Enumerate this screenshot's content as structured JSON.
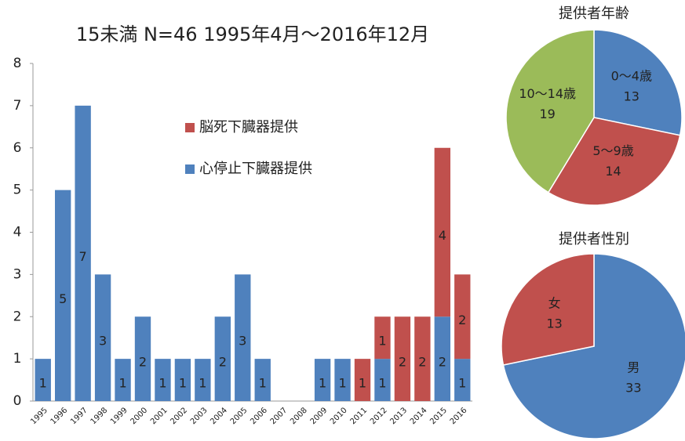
{
  "chart_data": [
    {
      "type": "bar",
      "stacked": true,
      "title": "15未満 N=46 1995年4月～2016年12月",
      "categories": [
        "1995",
        "1996",
        "1997",
        "1998",
        "1999",
        "2000",
        "2001",
        "2002",
        "2003",
        "2004",
        "2005",
        "2006",
        "2007",
        "2008",
        "2009",
        "2010",
        "2011",
        "2012",
        "2013",
        "2014",
        "2015",
        "2016"
      ],
      "series": [
        {
          "name": "心停止下臓器提供",
          "color": "#4f81bd",
          "values": [
            1,
            5,
            7,
            3,
            1,
            2,
            1,
            1,
            1,
            2,
            3,
            1,
            0,
            0,
            1,
            1,
            0,
            1,
            0,
            0,
            2,
            1
          ]
        },
        {
          "name": "脳死下臓器提供",
          "color": "#c0504d",
          "values": [
            0,
            0,
            0,
            0,
            0,
            0,
            0,
            0,
            0,
            0,
            0,
            0,
            0,
            0,
            0,
            0,
            1,
            1,
            2,
            2,
            4,
            2
          ]
        }
      ],
      "ylim": [
        0,
        8
      ],
      "yticks": [
        0,
        1,
        2,
        3,
        4,
        5,
        6,
        7,
        8
      ],
      "grid": false
    },
    {
      "type": "pie",
      "title": "提供者年齢",
      "categories": [
        "0～4歳",
        "5～9歳",
        "10～14歳"
      ],
      "values": [
        13,
        14,
        19
      ],
      "colors": [
        "#4f81bd",
        "#c0504d",
        "#9bbb59"
      ]
    },
    {
      "type": "pie",
      "title": "提供者性別",
      "categories": [
        "男",
        "女"
      ],
      "values": [
        33,
        13
      ],
      "colors": [
        "#4f81bd",
        "#c0504d"
      ]
    }
  ]
}
